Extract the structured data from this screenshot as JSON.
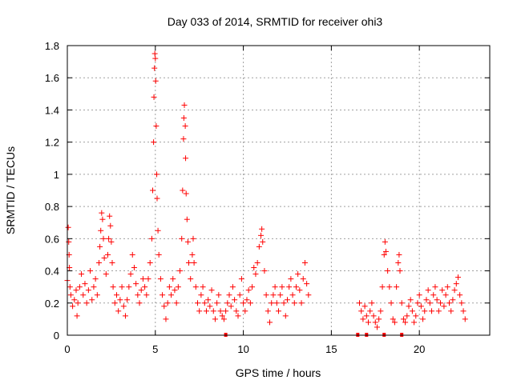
{
  "chart_data": {
    "type": "scatter",
    "title": "Day 033 of 2014, SRMTID for receiver ohi3",
    "xlabel": "GPS time / hours",
    "ylabel": "SRMTID / TECUs",
    "xlim": [
      0,
      24
    ],
    "ylim": [
      0,
      1.8
    ],
    "x_ticks": [
      {
        "value": 0,
        "label": "0"
      },
      {
        "value": 5,
        "label": "5"
      },
      {
        "value": 10,
        "label": "10"
      },
      {
        "value": 15,
        "label": "15"
      },
      {
        "value": 20,
        "label": "20"
      }
    ],
    "y_ticks": [
      {
        "value": 0,
        "label": "0"
      },
      {
        "value": 0.2,
        "label": "0.2"
      },
      {
        "value": 0.4,
        "label": "0.4"
      },
      {
        "value": 0.6,
        "label": "0.6"
      },
      {
        "value": 0.8,
        "label": "0.8"
      },
      {
        "value": 1.0,
        "label": "1"
      },
      {
        "value": 1.2,
        "label": "1.2"
      },
      {
        "value": 1.4,
        "label": "1.4"
      },
      {
        "value": 1.6,
        "label": "1.6"
      },
      {
        "value": 1.8,
        "label": "1.8"
      }
    ],
    "grid": true,
    "marker": "+",
    "series": [
      {
        "name": "SRMTID",
        "color": "#ff0000",
        "points": [
          [
            0.0,
            0.34
          ],
          [
            0.05,
            0.67
          ],
          [
            0.08,
            0.58
          ],
          [
            0.1,
            0.5
          ],
          [
            0.12,
            0.42
          ],
          [
            0.15,
            0.3
          ],
          [
            0.2,
            0.25
          ],
          [
            0.3,
            0.18
          ],
          [
            0.4,
            0.22
          ],
          [
            0.5,
            0.28
          ],
          [
            0.55,
            0.12
          ],
          [
            0.6,
            0.2
          ],
          [
            0.7,
            0.3
          ],
          [
            0.8,
            0.38
          ],
          [
            0.9,
            0.25
          ],
          [
            1.0,
            0.32
          ],
          [
            1.1,
            0.2
          ],
          [
            1.2,
            0.28
          ],
          [
            1.3,
            0.4
          ],
          [
            1.4,
            0.22
          ],
          [
            1.5,
            0.3
          ],
          [
            1.6,
            0.35
          ],
          [
            1.7,
            0.25
          ],
          [
            1.8,
            0.45
          ],
          [
            1.85,
            0.55
          ],
          [
            1.9,
            0.65
          ],
          [
            1.95,
            0.76
          ],
          [
            2.0,
            0.72
          ],
          [
            2.05,
            0.6
          ],
          [
            2.1,
            0.48
          ],
          [
            2.2,
            0.38
          ],
          [
            2.3,
            0.5
          ],
          [
            2.35,
            0.6
          ],
          [
            2.4,
            0.74
          ],
          [
            2.45,
            0.68
          ],
          [
            2.5,
            0.58
          ],
          [
            2.55,
            0.45
          ],
          [
            2.6,
            0.3
          ],
          [
            2.7,
            0.2
          ],
          [
            2.8,
            0.25
          ],
          [
            2.9,
            0.15
          ],
          [
            3.0,
            0.22
          ],
          [
            3.1,
            0.3
          ],
          [
            3.2,
            0.18
          ],
          [
            3.3,
            0.12
          ],
          [
            3.4,
            0.22
          ],
          [
            3.5,
            0.3
          ],
          [
            3.6,
            0.38
          ],
          [
            3.7,
            0.5
          ],
          [
            3.8,
            0.42
          ],
          [
            3.9,
            0.32
          ],
          [
            4.0,
            0.25
          ],
          [
            4.1,
            0.2
          ],
          [
            4.2,
            0.28
          ],
          [
            4.3,
            0.35
          ],
          [
            4.4,
            0.3
          ],
          [
            4.5,
            0.25
          ],
          [
            4.6,
            0.35
          ],
          [
            4.7,
            0.45
          ],
          [
            4.8,
            0.6
          ],
          [
            4.85,
            0.9
          ],
          [
            4.9,
            1.2
          ],
          [
            4.92,
            1.48
          ],
          [
            4.95,
            1.66
          ],
          [
            4.97,
            1.75
          ],
          [
            5.0,
            1.72
          ],
          [
            5.02,
            1.58
          ],
          [
            5.05,
            1.3
          ],
          [
            5.08,
            1.0
          ],
          [
            5.1,
            0.85
          ],
          [
            5.15,
            0.65
          ],
          [
            5.2,
            0.5
          ],
          [
            5.3,
            0.35
          ],
          [
            5.4,
            0.25
          ],
          [
            5.5,
            0.18
          ],
          [
            5.6,
            0.1
          ],
          [
            5.7,
            0.2
          ],
          [
            5.8,
            0.3
          ],
          [
            5.9,
            0.25
          ],
          [
            6.0,
            0.35
          ],
          [
            6.1,
            0.28
          ],
          [
            6.2,
            0.2
          ],
          [
            6.3,
            0.3
          ],
          [
            6.4,
            0.4
          ],
          [
            6.5,
            0.6
          ],
          [
            6.55,
            0.9
          ],
          [
            6.6,
            1.22
          ],
          [
            6.62,
            1.35
          ],
          [
            6.65,
            1.43
          ],
          [
            6.7,
            1.3
          ],
          [
            6.72,
            1.1
          ],
          [
            6.75,
            0.88
          ],
          [
            6.8,
            0.72
          ],
          [
            6.85,
            0.58
          ],
          [
            6.9,
            0.45
          ],
          [
            7.0,
            0.35
          ],
          [
            7.1,
            0.5
          ],
          [
            7.15,
            0.6
          ],
          [
            7.2,
            0.45
          ],
          [
            7.3,
            0.3
          ],
          [
            7.4,
            0.2
          ],
          [
            7.5,
            0.15
          ],
          [
            7.6,
            0.25
          ],
          [
            7.7,
            0.3
          ],
          [
            7.8,
            0.2
          ],
          [
            7.9,
            0.15
          ],
          [
            8.0,
            0.22
          ],
          [
            8.1,
            0.18
          ],
          [
            8.2,
            0.28
          ],
          [
            8.3,
            0.15
          ],
          [
            8.4,
            0.1
          ],
          [
            8.5,
            0.2
          ],
          [
            8.6,
            0.25
          ],
          [
            8.7,
            0.15
          ],
          [
            8.8,
            0.12
          ],
          [
            8.9,
            0.1
          ],
          [
            9.0,
            0.15
          ],
          [
            9.1,
            0.2
          ],
          [
            9.2,
            0.25
          ],
          [
            9.3,
            0.18
          ],
          [
            9.4,
            0.3
          ],
          [
            9.5,
            0.22
          ],
          [
            9.6,
            0.15
          ],
          [
            9.7,
            0.12
          ],
          [
            9.8,
            0.25
          ],
          [
            9.9,
            0.35
          ],
          [
            10.0,
            0.2
          ],
          [
            10.1,
            0.15
          ],
          [
            10.2,
            0.22
          ],
          [
            10.3,
            0.28
          ],
          [
            10.4,
            0.2
          ],
          [
            10.5,
            0.3
          ],
          [
            10.6,
            0.42
          ],
          [
            10.7,
            0.38
          ],
          [
            10.8,
            0.45
          ],
          [
            10.9,
            0.55
          ],
          [
            11.0,
            0.62
          ],
          [
            11.05,
            0.66
          ],
          [
            11.1,
            0.58
          ],
          [
            11.2,
            0.4
          ],
          [
            11.3,
            0.25
          ],
          [
            11.4,
            0.15
          ],
          [
            11.5,
            0.08
          ],
          [
            11.6,
            0.2
          ],
          [
            11.7,
            0.25
          ],
          [
            11.8,
            0.3
          ],
          [
            11.9,
            0.2
          ],
          [
            12.0,
            0.15
          ],
          [
            12.1,
            0.25
          ],
          [
            12.2,
            0.3
          ],
          [
            12.3,
            0.2
          ],
          [
            12.4,
            0.12
          ],
          [
            12.5,
            0.22
          ],
          [
            12.6,
            0.3
          ],
          [
            12.7,
            0.35
          ],
          [
            12.8,
            0.25
          ],
          [
            12.9,
            0.2
          ],
          [
            13.0,
            0.3
          ],
          [
            13.1,
            0.38
          ],
          [
            13.2,
            0.28
          ],
          [
            13.3,
            0.2
          ],
          [
            13.4,
            0.35
          ],
          [
            13.5,
            0.45
          ],
          [
            13.6,
            0.32
          ],
          [
            13.7,
            0.25
          ],
          [
            16.6,
            0.2
          ],
          [
            16.7,
            0.15
          ],
          [
            16.8,
            0.1
          ],
          [
            16.9,
            0.18
          ],
          [
            17.0,
            0.12
          ],
          [
            17.1,
            0.08
          ],
          [
            17.2,
            0.15
          ],
          [
            17.3,
            0.2
          ],
          [
            17.4,
            0.12
          ],
          [
            17.5,
            0.08
          ],
          [
            17.6,
            0.05
          ],
          [
            17.7,
            0.1
          ],
          [
            17.8,
            0.15
          ],
          [
            17.9,
            0.3
          ],
          [
            18.0,
            0.5
          ],
          [
            18.05,
            0.58
          ],
          [
            18.1,
            0.52
          ],
          [
            18.2,
            0.4
          ],
          [
            18.3,
            0.3
          ],
          [
            18.4,
            0.2
          ],
          [
            18.5,
            0.1
          ],
          [
            18.6,
            0.08
          ],
          [
            18.7,
            0.3
          ],
          [
            18.8,
            0.45
          ],
          [
            18.85,
            0.5
          ],
          [
            18.9,
            0.4
          ],
          [
            19.0,
            0.2
          ],
          [
            19.1,
            0.1
          ],
          [
            19.2,
            0.08
          ],
          [
            19.3,
            0.12
          ],
          [
            19.4,
            0.18
          ],
          [
            19.5,
            0.22
          ],
          [
            19.6,
            0.15
          ],
          [
            19.7,
            0.08
          ],
          [
            19.8,
            0.12
          ],
          [
            19.9,
            0.2
          ],
          [
            20.0,
            0.25
          ],
          [
            20.1,
            0.18
          ],
          [
            20.2,
            0.1
          ],
          [
            20.3,
            0.15
          ],
          [
            20.4,
            0.22
          ],
          [
            20.5,
            0.28
          ],
          [
            20.6,
            0.2
          ],
          [
            20.7,
            0.15
          ],
          [
            20.8,
            0.25
          ],
          [
            20.9,
            0.3
          ],
          [
            21.0,
            0.22
          ],
          [
            21.1,
            0.15
          ],
          [
            21.2,
            0.2
          ],
          [
            21.3,
            0.28
          ],
          [
            21.4,
            0.18
          ],
          [
            21.5,
            0.25
          ],
          [
            21.6,
            0.3
          ],
          [
            21.7,
            0.2
          ],
          [
            21.8,
            0.15
          ],
          [
            21.9,
            0.22
          ],
          [
            22.0,
            0.28
          ],
          [
            22.1,
            0.32
          ],
          [
            22.2,
            0.36
          ],
          [
            22.3,
            0.25
          ],
          [
            22.4,
            0.2
          ],
          [
            22.5,
            0.15
          ],
          [
            22.6,
            0.1
          ]
        ]
      }
    ],
    "zero_markers": [
      [
        9.0,
        0
      ],
      [
        16.5,
        0
      ],
      [
        17.0,
        0
      ],
      [
        18.0,
        0
      ],
      [
        19.0,
        0
      ]
    ]
  }
}
